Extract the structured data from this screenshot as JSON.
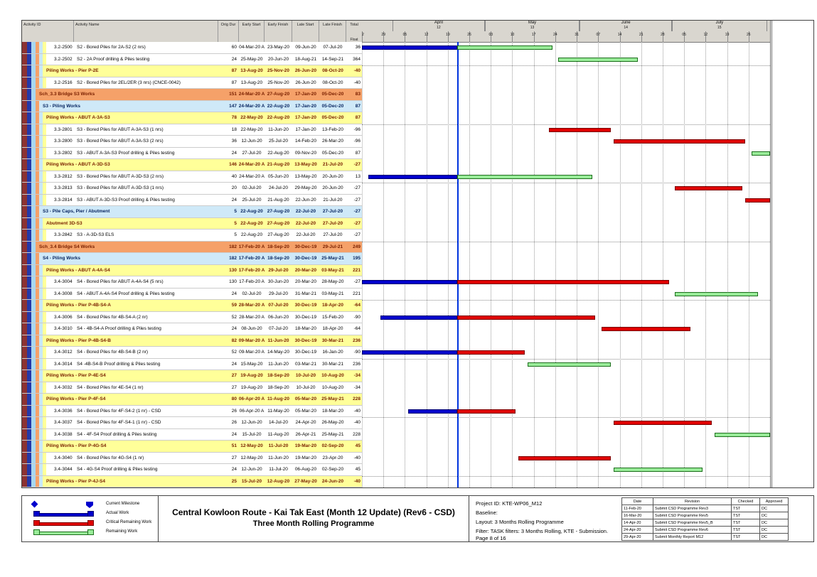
{
  "header": {
    "columns": [
      "Activity ID",
      "Activity Name",
      "Orig Dur",
      "Early Start",
      "Early Finish",
      "Late Start",
      "Late Finish"
    ],
    "float_col": {
      "line1": "Total",
      "line2": "Float"
    }
  },
  "chart_data": {
    "type": "gantt",
    "timeline": {
      "start": "2020-03-22",
      "end": "2020-08-02",
      "weeks": 19,
      "data_date": "2020-04-22",
      "week_labels": [
        "22",
        "29",
        "05",
        "12",
        "19",
        "26",
        "03",
        "10",
        "17",
        "24",
        "31",
        "07",
        "14",
        "21",
        "28",
        "05",
        "12",
        "19",
        "26"
      ],
      "months": [
        {
          "name": "April",
          "num": "12",
          "start": "2020-04-01",
          "end": "2020-05-01"
        },
        {
          "name": "May",
          "num": "13",
          "start": "2020-05-01",
          "end": "2020-06-01"
        },
        {
          "name": "June",
          "num": "14",
          "start": "2020-06-01",
          "end": "2020-07-01"
        },
        {
          "name": "July",
          "num": "15",
          "start": "2020-07-01",
          "end": "2020-08-01"
        }
      ]
    },
    "rows": [
      {
        "type": "t",
        "id": "3.2-2500",
        "name": "S2 - Bored Piles for 2A-S2 (2 nrs)",
        "dur": "60",
        "es": "04-Mar-20 A",
        "ef": "23-May-20",
        "ls": "09-Jun-20",
        "lf": "07-Jul-20",
        "fl": "36",
        "bars": [
          {
            "k": "actual",
            "s": "2020-03-04",
            "e": "DD"
          },
          {
            "k": "remaining",
            "s": "DD",
            "e": "2020-05-23"
          }
        ]
      },
      {
        "type": "t",
        "id": "3.2-2502",
        "name": "S2 - 2A Proof drilling & Piles testing",
        "dur": "24",
        "es": "25-May-20",
        "ef": "20-Jun-20",
        "ls": "18-Aug-21",
        "lf": "14-Sep-21",
        "fl": "364",
        "bars": [
          {
            "k": "remaining",
            "s": "2020-05-25",
            "e": "2020-06-20"
          }
        ]
      },
      {
        "type": "y",
        "name": "Piling Works - Pier P-2E",
        "dur": "87",
        "es": "13-Aug-20",
        "ef": "25-Nov-20",
        "ls": "26-Jun-20",
        "lf": "08-Oct-20",
        "fl": "-40",
        "bars": []
      },
      {
        "type": "t",
        "id": "3.2-2516",
        "name": "S2 - Bored Piles for 2EL/2ER (3 nrs) (CNCE-0042)",
        "dur": "87",
        "es": "13-Aug-20",
        "ef": "25-Nov-20",
        "ls": "26-Jun-20",
        "lf": "08-Oct-20",
        "fl": "-40",
        "bars": []
      },
      {
        "type": "o",
        "name": "Sch_3.3 Bridge S3 Works",
        "dur": "151",
        "es": "24-Mar-20 A",
        "ef": "27-Aug-20",
        "ls": "17-Jan-20",
        "lf": "05-Dec-20",
        "fl": "83",
        "bars": []
      },
      {
        "type": "b",
        "name": "S3 - Piling Works",
        "dur": "147",
        "es": "24-Mar-20 A",
        "ef": "22-Aug-20",
        "ls": "17-Jan-20",
        "lf": "05-Dec-20",
        "fl": "87",
        "bars": []
      },
      {
        "type": "y",
        "name": "Piling Works - ABUT A-3A-S3",
        "dur": "78",
        "es": "22-May-20",
        "ef": "22-Aug-20",
        "ls": "17-Jan-20",
        "lf": "05-Dec-20",
        "fl": "87",
        "bars": []
      },
      {
        "type": "t",
        "id": "3.3-2801",
        "name": "S3 - Bored Piles for ABUT A-3A-S3 (1 nrs)",
        "dur": "18",
        "es": "22-May-20",
        "ef": "11-Jun-20",
        "ls": "17-Jan-20",
        "lf": "13-Feb-20",
        "fl": "-96",
        "bars": [
          {
            "k": "critical",
            "s": "2020-05-22",
            "e": "2020-06-11"
          }
        ]
      },
      {
        "type": "t",
        "id": "3.3-2800",
        "name": "S3 - Bored Piles for ABUT A-3A-S3 (2 nrs)",
        "dur": "36",
        "es": "12-Jun-20",
        "ef": "25-Jul-20",
        "ls": "14-Feb-20",
        "lf": "26-Mar-20",
        "fl": "-96",
        "bars": [
          {
            "k": "critical",
            "s": "2020-06-12",
            "e": "2020-07-25"
          }
        ]
      },
      {
        "type": "t",
        "id": "3.3-2802",
        "name": "S3 - ABUT A-3A-S3 Proof drilling & Piles testing",
        "dur": "24",
        "es": "27-Jul-20",
        "ef": "22-Aug-20",
        "ls": "09-Nov-20",
        "lf": "05-Dec-20",
        "fl": "87",
        "bars": [
          {
            "k": "remaining",
            "s": "2020-07-27",
            "e": "2020-08-22"
          }
        ]
      },
      {
        "type": "y",
        "name": "Piling Works - ABUT A-3D-S3",
        "dur": "146",
        "es": "24-Mar-20 A",
        "ef": "21-Aug-20",
        "ls": "13-May-20",
        "lf": "21-Jul-20",
        "fl": "-27",
        "bars": []
      },
      {
        "type": "t",
        "id": "3.3-2812",
        "name": "S3 - Bored Piles for ABUT A-3D-S3 (2 nrs)",
        "dur": "40",
        "es": "24-Mar-20 A",
        "ef": "05-Jun-20",
        "ls": "13-May-20",
        "lf": "20-Jun-20",
        "fl": "13",
        "bars": [
          {
            "k": "actual",
            "s": "2020-03-24",
            "e": "DD"
          },
          {
            "k": "remaining",
            "s": "DD",
            "e": "2020-06-05"
          }
        ]
      },
      {
        "type": "t",
        "id": "3.3-2813",
        "name": "S3 - Bored Piles for ABUT A-3D-S3 (1 nrs)",
        "dur": "20",
        "es": "02-Jul-20",
        "ef": "24-Jul-20",
        "ls": "29-May-20",
        "lf": "20-Jun-20",
        "fl": "-27",
        "bars": [
          {
            "k": "critical",
            "s": "2020-07-02",
            "e": "2020-07-24"
          }
        ]
      },
      {
        "type": "t",
        "id": "3.3-2814",
        "name": "S3 - ABUT A-3D-S3 Proof drilling & Piles testing",
        "dur": "24",
        "es": "25-Jul-20",
        "ef": "21-Aug-20",
        "ls": "22-Jun-20",
        "lf": "21-Jul-20",
        "fl": "-27",
        "bars": [
          {
            "k": "critical",
            "s": "2020-07-25",
            "e": "2020-08-21"
          }
        ]
      },
      {
        "type": "b",
        "name": "S3 - Pile Caps, Pier / Abutment",
        "dur": "5",
        "es": "22-Aug-20",
        "ef": "27-Aug-20",
        "ls": "22-Jul-20",
        "lf": "27-Jul-20",
        "fl": "-27",
        "bars": []
      },
      {
        "type": "y",
        "name": "Abutment 3D-S3",
        "dur": "5",
        "es": "22-Aug-20",
        "ef": "27-Aug-20",
        "ls": "22-Jul-20",
        "lf": "27-Jul-20",
        "fl": "-27",
        "bars": []
      },
      {
        "type": "t",
        "id": "3.3-2842",
        "name": "S3 - A-3D-S3 ELS",
        "dur": "5",
        "es": "22-Aug-20",
        "ef": "27-Aug-20",
        "ls": "22-Jul-20",
        "lf": "27-Jul-20",
        "fl": "-27",
        "bars": []
      },
      {
        "type": "o",
        "name": "Sch_3.4 Bridge S4 Works",
        "dur": "182",
        "es": "17-Feb-20 A",
        "ef": "18-Sep-20",
        "ls": "30-Dec-19",
        "lf": "29-Jul-21",
        "fl": "249",
        "bars": []
      },
      {
        "type": "b",
        "name": "S4 - Piling Works",
        "dur": "182",
        "es": "17-Feb-20 A",
        "ef": "18-Sep-20",
        "ls": "30-Dec-19",
        "lf": "25-May-21",
        "fl": "195",
        "bars": []
      },
      {
        "type": "y",
        "name": "Piling Works - ABUT A-4A-S4",
        "dur": "130",
        "es": "17-Feb-20 A",
        "ef": "29-Jul-20",
        "ls": "20-Mar-20",
        "lf": "03-May-21",
        "fl": "221",
        "bars": []
      },
      {
        "type": "t",
        "id": "3.4-3004",
        "name": "S4 - Bored Piles for ABUT A-4A-S4  (5 nrs)",
        "dur": "130",
        "es": "17-Feb-20 A",
        "ef": "30-Jun-20",
        "ls": "20-Mar-20",
        "lf": "28-May-20",
        "fl": "-27",
        "bars": [
          {
            "k": "actual",
            "s": "2020-02-17",
            "e": "DD"
          },
          {
            "k": "critical",
            "s": "DD",
            "e": "2020-06-30"
          }
        ]
      },
      {
        "type": "t",
        "id": "3.4-3008",
        "name": "S4 - ABUT A-4A-S4  Proof drilling & Piles testing",
        "dur": "24",
        "es": "02-Jul-20",
        "ef": "29-Jul-20",
        "ls": "31-Mar-21",
        "lf": "03-May-21",
        "fl": "221",
        "bars": [
          {
            "k": "remaining",
            "s": "2020-07-02",
            "e": "2020-07-29"
          }
        ]
      },
      {
        "type": "y",
        "name": "Piling Works - Pier P-4B-S4-A",
        "dur": "59",
        "es": "28-Mar-20 A",
        "ef": "07-Jul-20",
        "ls": "30-Dec-19",
        "lf": "18-Apr-20",
        "fl": "-64",
        "bars": []
      },
      {
        "type": "t",
        "id": "3.4-3006",
        "name": "S4 - Bored Piles for 4B-S4-A (2 nr)",
        "dur": "52",
        "es": "28-Mar-20 A",
        "ef": "06-Jun-20",
        "ls": "30-Dec-19",
        "lf": "15-Feb-20",
        "fl": "-90",
        "bars": [
          {
            "k": "actual",
            "s": "2020-03-28",
            "e": "DD"
          },
          {
            "k": "critical",
            "s": "DD",
            "e": "2020-06-06"
          }
        ]
      },
      {
        "type": "t",
        "id": "3.4-3010",
        "name": "S4 - 4B-S4-A Proof drilling & Piles testing",
        "dur": "24",
        "es": "08-Jun-20",
        "ef": "07-Jul-20",
        "ls": "18-Mar-20",
        "lf": "18-Apr-20",
        "fl": "-64",
        "bars": [
          {
            "k": "critical",
            "s": "2020-06-08",
            "e": "2020-07-07"
          }
        ]
      },
      {
        "type": "y",
        "name": "Piling Works - Pier P-4B-S4-B",
        "dur": "82",
        "es": "09-Mar-20 A",
        "ef": "11-Jun-20",
        "ls": "30-Dec-19",
        "lf": "30-Mar-21",
        "fl": "236",
        "bars": []
      },
      {
        "type": "t",
        "id": "3.4-3012",
        "name": "S4 - Bored Piles for 4B-S4-B (2 nr)",
        "dur": "52",
        "es": "09-Mar-20 A",
        "ef": "14-May-20",
        "ls": "30-Dec-19",
        "lf": "16-Jan-20",
        "fl": "-90",
        "bars": [
          {
            "k": "actual",
            "s": "2020-03-09",
            "e": "DD"
          },
          {
            "k": "critical",
            "s": "DD",
            "e": "2020-05-14"
          }
        ]
      },
      {
        "type": "t",
        "id": "3.4-3014",
        "name": "S4 -4B-S4-B Proof drilling & Piles testing",
        "dur": "24",
        "es": "15-May-20",
        "ef": "11-Jun-20",
        "ls": "03-Mar-21",
        "lf": "30-Mar-21",
        "fl": "236",
        "bars": [
          {
            "k": "remaining",
            "s": "2020-05-15",
            "e": "2020-06-11"
          }
        ]
      },
      {
        "type": "y",
        "name": "Piling Works - Pier P-4E-S4",
        "dur": "27",
        "es": "19-Aug-20",
        "ef": "18-Sep-20",
        "ls": "10-Jul-20",
        "lf": "10-Aug-20",
        "fl": "-34",
        "bars": []
      },
      {
        "type": "t",
        "id": "3.4-3032",
        "name": "S4 - Bored Piles for 4E-S4 (1 nr)",
        "dur": "27",
        "es": "19-Aug-20",
        "ef": "18-Sep-20",
        "ls": "10-Jul-20",
        "lf": "10-Aug-20",
        "fl": "-34",
        "bars": []
      },
      {
        "type": "y",
        "name": "Piling Works - Pier P-4F-S4",
        "dur": "80",
        "es": "06-Apr-20 A",
        "ef": "11-Aug-20",
        "ls": "05-Mar-20",
        "lf": "25-May-21",
        "fl": "228",
        "bars": []
      },
      {
        "type": "t",
        "id": "3.4-3036",
        "name": "S4 - Bored Piles for 4F-S4-2 (1 nr) - CSD",
        "dur": "26",
        "es": "06-Apr-20 A",
        "ef": "11-May-20",
        "ls": "05-Mar-20",
        "lf": "18-Mar-20",
        "fl": "-40",
        "bars": [
          {
            "k": "actual",
            "s": "2020-04-06",
            "e": "DD"
          },
          {
            "k": "critical",
            "s": "DD",
            "e": "2020-05-11"
          }
        ]
      },
      {
        "type": "t",
        "id": "3.4-3037",
        "name": "S4 - Bored Piles for 4F-S4-1 (1 nr) - CSD",
        "dur": "26",
        "es": "12-Jun-20",
        "ef": "14-Jul-20",
        "ls": "24-Apr-20",
        "lf": "26-May-20",
        "fl": "-40",
        "bars": [
          {
            "k": "critical",
            "s": "2020-06-12",
            "e": "2020-07-14"
          }
        ]
      },
      {
        "type": "t",
        "id": "3.4-3038",
        "name": "S4 - 4F-S4 Proof drilling & Piles testing",
        "dur": "24",
        "es": "15-Jul-20",
        "ef": "11-Aug-20",
        "ls": "26-Apr-21",
        "lf": "25-May-21",
        "fl": "228",
        "bars": [
          {
            "k": "remaining",
            "s": "2020-07-15",
            "e": "2020-08-11"
          }
        ]
      },
      {
        "type": "y",
        "name": "Piling Works - Pier P-4G-S4",
        "dur": "51",
        "es": "12-May-20",
        "ef": "11-Jul-20",
        "ls": "19-Mar-20",
        "lf": "02-Sep-20",
        "fl": "45",
        "bars": []
      },
      {
        "type": "t",
        "id": "3.4-3040",
        "name": "S4 - Bored Piles for 4G-S4 (1 nr)",
        "dur": "27",
        "es": "12-May-20",
        "ef": "11-Jun-20",
        "ls": "19-Mar-20",
        "lf": "23-Apr-20",
        "fl": "-40",
        "bars": [
          {
            "k": "critical",
            "s": "2020-05-12",
            "e": "2020-06-11"
          }
        ]
      },
      {
        "type": "t",
        "id": "3.4-3044",
        "name": "S4 - 4G-S4 Proof drilling & Piles testing",
        "dur": "24",
        "es": "12-Jun-20",
        "ef": "11-Jul-20",
        "ls": "06-Aug-20",
        "lf": "02-Sep-20",
        "fl": "45",
        "bars": [
          {
            "k": "remaining",
            "s": "2020-06-12",
            "e": "2020-07-11"
          }
        ]
      },
      {
        "type": "y",
        "name": "Piling Works - Pier P-4J-S4",
        "dur": "25",
        "es": "15-Jul-20",
        "ef": "12-Aug-20",
        "ls": "27-May-20",
        "lf": "24-Jun-20",
        "fl": "-40",
        "bars": []
      }
    ]
  },
  "legend": {
    "items": [
      {
        "kind": "milestone",
        "label": "Current Milestone"
      },
      {
        "kind": "actual",
        "label": "Actual Work"
      },
      {
        "kind": "critical",
        "label": "Critical Remaining Work"
      },
      {
        "kind": "remaining",
        "label": "Remaining Work"
      }
    ]
  },
  "title": {
    "line1": "Central Kowloon Route - Kai Tak East (Month 12 Update) (Rev6 - CSD)",
    "line2": "Three Month Rolling Programme"
  },
  "info": {
    "lines": [
      "Project ID: KTE-WP06_M12",
      "Baseline:",
      "Layout: 3 Months Rolling Programme",
      "Filter: TASK filters: 3 Months Rolling, KTE - Submission."
    ],
    "page": "Page 8 of 16"
  },
  "revisions": {
    "columns": [
      "Date",
      "Revision",
      "Checked",
      "Approved"
    ],
    "rows": [
      [
        "11-Feb-20",
        "Submit CSD Programme Rev3",
        "TST",
        "DC"
      ],
      [
        "16-Mar-20",
        "Submit CSD Programme Rev5",
        "TST",
        "DC"
      ],
      [
        "14-Apr-20",
        "Submit CSD Programme Rev5_B",
        "TST",
        "DC"
      ],
      [
        "24-Apr-20",
        "Submit CSD Programme Rev6",
        "TST",
        "DC"
      ],
      [
        "29-Apr-20",
        "Submit Monthly Report M12",
        "TST",
        "DC"
      ]
    ]
  },
  "colors": {
    "band_yellow": "#ffff99",
    "band_orange": "#f5a169",
    "band_blue": "#cfe9f8",
    "band_text_warm": "#7a2000",
    "band_text_blue": "#06235e",
    "actual": "#0000cd",
    "actual_border": "#000070",
    "critical": "#e00000",
    "critical_border": "#7a0000",
    "remaining": "#99ec99",
    "remaining_border": "#1d6e1d",
    "data_date_line": "#0033dd",
    "header_bg": "#d9d6cf",
    "stripes": [
      "#8b3232",
      "#2438a8",
      "#a8d8f0",
      "#f5a169",
      "#c8e8f8",
      "#ffff99"
    ]
  }
}
